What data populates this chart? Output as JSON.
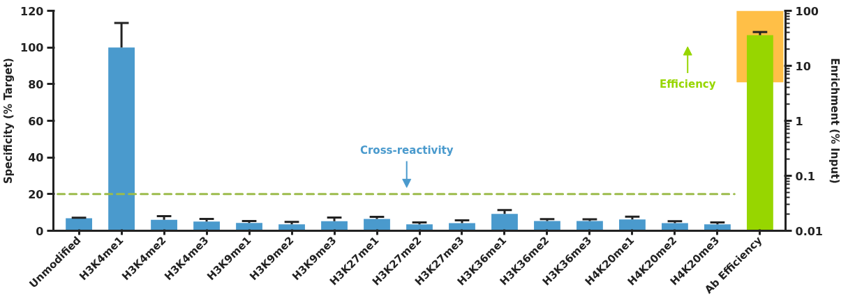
{
  "chart_data": {
    "type": "bar",
    "categories": [
      "Unmodified",
      "H3K4me1",
      "H3K4me2",
      "H3K4me3",
      "H3K9me1",
      "H3K9me2",
      "H3K9me3",
      "H3K27me1",
      "H3K27me2",
      "H3K27me3",
      "H3K36me1",
      "H3K36me2",
      "H3K36me3",
      "H4K20me1",
      "H4K20me2",
      "H4K20me3",
      "Ab Efficiency"
    ],
    "ylabel": "Specificity (% Target)",
    "y2label": "Enrichment (% Input)",
    "ylim": [
      0,
      120
    ],
    "yticks": [
      0,
      20,
      40,
      60,
      80,
      100,
      120
    ],
    "y2lim": [
      0.01,
      100
    ],
    "y2ticks": [
      0.01,
      0.1,
      1,
      10,
      100
    ],
    "log": "y2",
    "series": [
      {
        "color": "#4a9acd",
        "values": [
          6.8,
          100,
          6.0,
          5.0,
          4.3,
          3.5,
          5.2,
          6.5,
          3.5,
          4.2,
          9.2,
          5.3,
          5.3,
          6.2,
          4.2,
          3.5,
          null
        ],
        "errors": [
          0.3,
          13.4,
          2.0,
          1.5,
          1.0,
          1.3,
          2.0,
          1.1,
          1.1,
          1.5,
          2.1,
          1.1,
          1.0,
          1.5,
          1.0,
          1.1,
          null
        ]
      },
      {
        "color": "#97d600",
        "axis": "y2",
        "values": [
          null,
          null,
          null,
          null,
          null,
          null,
          null,
          null,
          null,
          null,
          null,
          null,
          null,
          null,
          null,
          null,
          36
        ],
        "errors": [
          null,
          null,
          null,
          null,
          null,
          null,
          null,
          null,
          null,
          null,
          null,
          null,
          null,
          null,
          null,
          null,
          5
        ]
      }
    ],
    "ref_lines": [
      {
        "axis": "y",
        "value": 20,
        "line_style": "dashed",
        "color": "#9cbc4c"
      }
    ],
    "bands": [
      {
        "axis": "y2",
        "from": 5,
        "to": 100,
        "color": "#ffb833"
      }
    ],
    "annotations": [
      "Cross-reactivity",
      "Efficiency"
    ],
    "grid": false
  }
}
